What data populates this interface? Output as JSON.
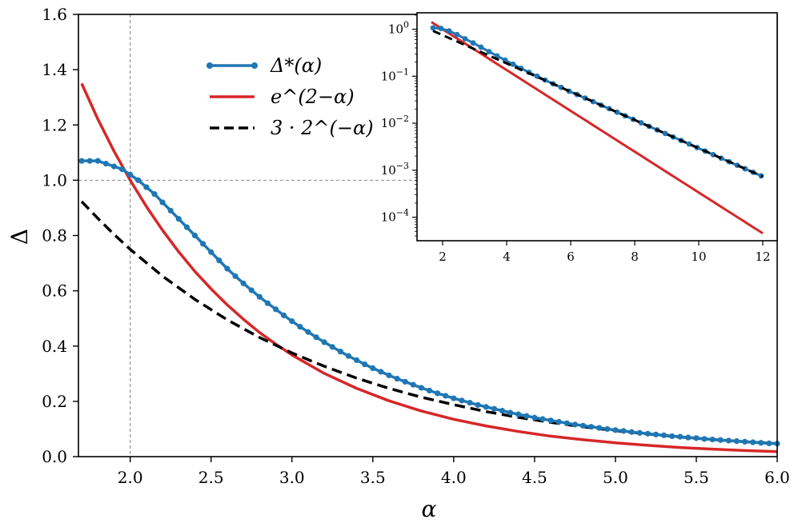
{
  "chart_data": [
    {
      "id": "main",
      "type": "line",
      "xlabel": "α",
      "ylabel": "Δ",
      "xlim": [
        1.68,
        6.0
      ],
      "ylim": [
        0.0,
        1.6
      ],
      "xticks": [
        2.0,
        2.5,
        3.0,
        3.5,
        4.0,
        4.5,
        5.0,
        5.5,
        6.0
      ],
      "xtick_labels": [
        "2.0",
        "2.5",
        "3.0",
        "3.5",
        "4.0",
        "4.5",
        "5.0",
        "5.5",
        "6.0"
      ],
      "yticks": [
        0.0,
        0.2,
        0.4,
        0.6,
        0.8,
        1.0,
        1.2,
        1.4,
        1.6
      ],
      "ytick_labels": [
        "0.0",
        "0.2",
        "0.4",
        "0.6",
        "0.8",
        "1.0",
        "1.2",
        "1.4",
        "1.6"
      ],
      "reference_lines": {
        "x": 2.0,
        "y": 1.0,
        "style": "dashed",
        "color": "#888888"
      },
      "legend": {
        "placement": "upper-center-left",
        "entries": [
          {
            "label": "Δ*(α)",
            "series": "delta_star"
          },
          {
            "label": "e^(2−α)",
            "series": "exp"
          },
          {
            "label": "3 · 2^(−α)",
            "series": "power"
          }
        ]
      },
      "series": [
        {
          "name": "delta_star",
          "label": "Δ*(α)",
          "color": "#1f77b4",
          "marker": "circle",
          "x_start": 1.7,
          "x_step": 0.05,
          "values": [
            1.07,
            1.07,
            1.07,
            1.06,
            1.05,
            1.04,
            1.02,
            1.0,
            0.975,
            0.95,
            0.92,
            0.89,
            0.86,
            0.83,
            0.8,
            0.77,
            0.74,
            0.71,
            0.68,
            0.653,
            0.627,
            0.602,
            0.578,
            0.555,
            0.533,
            0.511,
            0.49,
            0.47,
            0.451,
            0.432,
            0.414,
            0.397,
            0.38,
            0.364,
            0.349,
            0.334,
            0.32,
            0.307,
            0.294,
            0.282,
            0.271,
            0.26,
            0.249,
            0.239,
            0.229,
            0.22,
            0.211,
            0.203,
            0.195,
            0.187,
            0.18,
            0.173,
            0.166,
            0.159,
            0.153,
            0.147,
            0.141,
            0.136,
            0.131,
            0.126,
            0.121,
            0.116,
            0.112,
            0.108,
            0.104,
            0.1,
            0.096,
            0.093,
            0.089,
            0.086,
            0.083,
            0.08,
            0.077,
            0.074,
            0.072,
            0.069,
            0.067,
            0.064,
            0.062,
            0.06,
            0.058,
            0.056,
            0.054,
            0.052,
            0.05,
            0.048,
            0.047
          ]
        },
        {
          "name": "exp",
          "label": "e^(2−α)",
          "color": "#d62728",
          "x": [
            1.7,
            1.8,
            1.9,
            2.0,
            2.1,
            2.2,
            2.3,
            2.4,
            2.5,
            2.6,
            2.7,
            2.8,
            2.9,
            3.0,
            3.2,
            3.4,
            3.6,
            3.8,
            4.0,
            4.2,
            4.4,
            4.6,
            4.8,
            5.0,
            5.2,
            5.4,
            5.6,
            5.8,
            6.0
          ],
          "values": [
            1.35,
            1.221,
            1.105,
            1.0,
            0.905,
            0.819,
            0.741,
            0.67,
            0.607,
            0.549,
            0.497,
            0.449,
            0.407,
            0.368,
            0.301,
            0.247,
            0.202,
            0.165,
            0.135,
            0.111,
            0.091,
            0.074,
            0.061,
            0.05,
            0.041,
            0.033,
            0.027,
            0.022,
            0.018
          ]
        },
        {
          "name": "power",
          "label": "3 · 2^(−α)",
          "color": "#000000",
          "style": "dashed",
          "x": [
            1.7,
            1.8,
            1.9,
            2.0,
            2.2,
            2.4,
            2.6,
            2.8,
            3.0,
            3.2,
            3.4,
            3.6,
            3.8,
            4.0,
            4.2,
            4.4,
            4.6,
            4.8,
            5.0,
            5.2,
            5.4,
            5.6,
            5.8,
            6.0
          ],
          "values": [
            0.923,
            0.862,
            0.804,
            0.75,
            0.653,
            0.569,
            0.495,
            0.431,
            0.375,
            0.327,
            0.284,
            0.247,
            0.215,
            0.188,
            0.163,
            0.142,
            0.124,
            0.108,
            0.094,
            0.082,
            0.071,
            0.062,
            0.054,
            0.047
          ]
        }
      ]
    },
    {
      "id": "inset",
      "type": "line",
      "yscale": "log",
      "xlim": [
        1.2,
        12.45
      ],
      "ylim_log10": [
        -4.5,
        0.35
      ],
      "xticks": [
        2,
        4,
        6,
        8,
        10,
        12
      ],
      "xtick_labels": [
        "2",
        "4",
        "6",
        "8",
        "10",
        "12"
      ],
      "yticks_log10": [
        0,
        -1,
        -2,
        -3,
        -4
      ],
      "ytick_labels": [
        {
          "base": "10",
          "exp": "0"
        },
        {
          "base": "10",
          "exp": "−1"
        },
        {
          "base": "10",
          "exp": "−2"
        },
        {
          "base": "10",
          "exp": "−3"
        },
        {
          "base": "10",
          "exp": "−4"
        }
      ],
      "series": [
        {
          "name": "delta_star",
          "color": "#1f77b4",
          "marker": "circle",
          "x_start": 1.7,
          "x_step": 0.25,
          "x_end": 12.0
        },
        {
          "name": "exp",
          "color": "#d62728",
          "x_start": 1.65,
          "x_end": 12.0
        },
        {
          "name": "power",
          "color": "#000000",
          "style": "dashed",
          "x_start": 1.7,
          "x_end": 12.0
        }
      ]
    }
  ]
}
